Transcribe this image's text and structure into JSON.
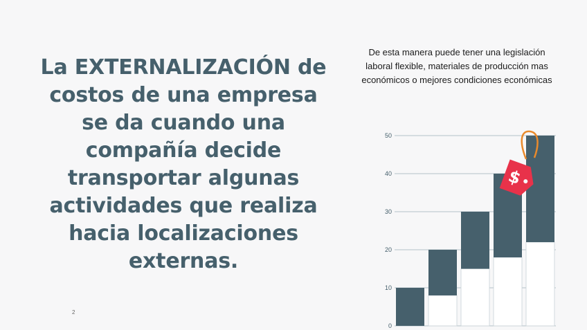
{
  "slide": {
    "headline": "La EXTERNALIZACIÓN de costos de una empresa se da cuando una compañía decide transportar algunas actividades que realiza hacia localizaciones externas.",
    "side_note": "De esta manera puede tener una legislación laboral flexible, materiales de producción mas económicos o mejores condiciones económicas",
    "page_number": "2"
  },
  "colors": {
    "background": "#f7f7f8",
    "bar_fill": "#46606c",
    "tag_red": "#e8324a",
    "tag_string": "#e98a2c",
    "text_primary": "#46606c"
  },
  "icons": {
    "price_tag": "price-tag-icon",
    "tag_symbol": "$"
  },
  "chart_data": {
    "type": "bar",
    "title": "",
    "xlabel": "",
    "ylabel": "",
    "ylim": [
      0,
      50
    ],
    "y_ticks": [
      "0",
      "10",
      "20",
      "30",
      "40",
      "50"
    ],
    "grid": true,
    "bars": [
      {
        "bottom": 0,
        "top": 10
      },
      {
        "bottom": 8,
        "top": 20
      },
      {
        "bottom": 15,
        "top": 30
      },
      {
        "bottom": 18,
        "top": 40
      },
      {
        "bottom": 22,
        "top": 50
      }
    ]
  }
}
